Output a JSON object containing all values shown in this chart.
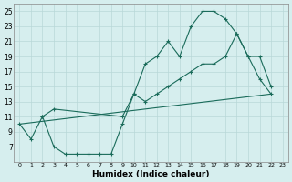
{
  "xlabel": "Humidex (Indice chaleur)",
  "bg_color": "#d6eeee",
  "grid_color": "#b8d8d8",
  "line_color": "#1a6b5a",
  "xlim": [
    -0.5,
    23.5
  ],
  "ylim": [
    5,
    26
  ],
  "xticks": [
    0,
    1,
    2,
    3,
    4,
    5,
    6,
    7,
    8,
    9,
    10,
    11,
    12,
    13,
    14,
    15,
    16,
    17,
    18,
    19,
    20,
    21,
    22,
    23
  ],
  "yticks": [
    7,
    9,
    11,
    13,
    15,
    17,
    19,
    21,
    23,
    25
  ],
  "line1_x": [
    0,
    1,
    2,
    3,
    4,
    5,
    6,
    7,
    8,
    9,
    10,
    11,
    12,
    13,
    14,
    15,
    16,
    17,
    18,
    19,
    20,
    21,
    22
  ],
  "line1_y": [
    10,
    8,
    11,
    7,
    6,
    6,
    6,
    6,
    6,
    10,
    14,
    18,
    19,
    21,
    19,
    23,
    25,
    25,
    24,
    22,
    19,
    16,
    14
  ],
  "line2_x": [
    0,
    22
  ],
  "line2_y": [
    10,
    14
  ],
  "line3_x": [
    2,
    3,
    9,
    10,
    11,
    12,
    13,
    14,
    15,
    16,
    17,
    18,
    19,
    20,
    21,
    22
  ],
  "line3_y": [
    11,
    12,
    11,
    14,
    13,
    14,
    15,
    16,
    17,
    18,
    18,
    19,
    22,
    19,
    19,
    15
  ]
}
